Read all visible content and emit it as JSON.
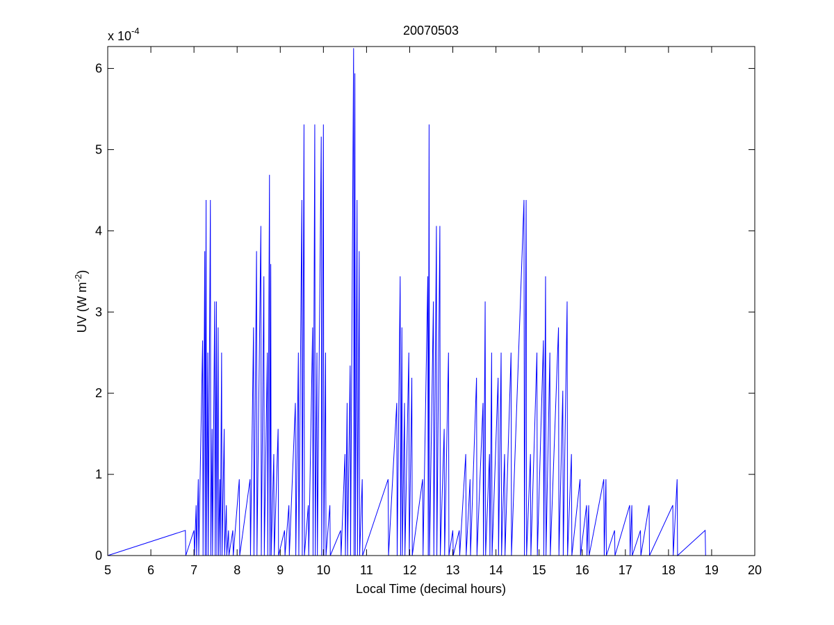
{
  "chart_data": {
    "type": "line",
    "title": "20070503",
    "xlabel": "Local Time (decimal hours)",
    "ylabel": {
      "text": "UV (W m",
      "superscript": "-2",
      "suffix": ")"
    },
    "y_multiplier": {
      "base": "x 10",
      "exponent": "-4"
    },
    "xlim": [
      5,
      20
    ],
    "ylim": [
      0,
      6.27
    ],
    "xticks": [
      5,
      6,
      7,
      8,
      9,
      10,
      11,
      12,
      13,
      14,
      15,
      16,
      17,
      18,
      19,
      20
    ],
    "yticks": [
      0,
      1,
      2,
      3,
      4,
      5,
      6
    ],
    "grid": false,
    "series": [
      {
        "color": "#0000ff",
        "x": [
          5,
          6.8,
          6.81,
          7,
          7.01,
          7.05,
          7.06,
          7.1,
          7.11,
          7.2,
          7.21,
          7.25,
          7.26,
          7.28,
          7.29,
          7.32,
          7.33,
          7.38,
          7.39,
          7.42,
          7.43,
          7.48,
          7.49,
          7.52,
          7.53,
          7.56,
          7.57,
          7.6,
          7.61,
          7.64,
          7.65,
          7.7,
          7.71,
          7.75,
          7.76,
          7.8,
          7.81,
          7.9,
          7.91,
          8.05,
          8.06,
          8.3,
          8.31,
          8.38,
          8.39,
          8.45,
          8.46,
          8.55,
          8.56,
          8.62,
          8.63,
          8.7,
          8.71,
          8.75,
          8.76,
          8.78,
          8.79,
          8.85,
          8.86,
          8.95,
          8.96,
          9.1,
          9.11,
          9.2,
          9.21,
          9.35,
          9.36,
          9.42,
          9.43,
          9.5,
          9.51,
          9.55,
          9.56,
          9.65,
          9.66,
          9.75,
          9.76,
          9.8,
          9.81,
          9.85,
          9.86,
          9.95,
          9.96,
          10,
          10.01,
          10.05,
          10.06,
          10.15,
          10.16,
          10.4,
          10.41,
          10.5,
          10.51,
          10.55,
          10.56,
          10.62,
          10.63,
          10.7,
          10.71,
          10.73,
          10.74,
          10.78,
          10.79,
          10.83,
          10.84,
          10.9,
          10.91,
          11.5,
          11.51,
          11.7,
          11.71,
          11.78,
          11.79,
          11.82,
          11.83,
          11.88,
          11.89,
          11.98,
          11.99,
          12.05,
          12.06,
          12.3,
          12.31,
          12.42,
          12.43,
          12.45,
          12.46,
          12.55,
          12.56,
          12.62,
          12.63,
          12.7,
          12.71,
          12.8,
          12.81,
          12.9,
          12.91,
          13,
          13.01,
          13.15,
          13.16,
          13.3,
          13.31,
          13.4,
          13.41,
          13.55,
          13.56,
          13.7,
          13.71,
          13.75,
          13.76,
          13.85,
          13.86,
          13.9,
          13.91,
          14.05,
          14.06,
          14.12,
          14.13,
          14.2,
          14.21,
          14.35,
          14.36,
          14.65,
          14.66,
          14.7,
          14.71,
          14.8,
          14.81,
          14.95,
          14.96,
          15.1,
          15.11,
          15.15,
          15.16,
          15.25,
          15.26,
          15.45,
          15.46,
          15.55,
          15.56,
          15.65,
          15.66,
          15.75,
          15.76,
          15.95,
          15.96,
          16.1,
          16.11,
          16.15,
          16.16,
          16.5,
          16.51,
          16.55,
          16.56,
          16.75,
          16.76,
          17.1,
          17.11,
          17.15,
          17.16,
          17.35,
          17.36,
          17.55,
          17.56,
          18.1,
          18.11,
          18.2,
          18.21,
          18.85,
          18.86,
          20
        ],
        "values": [
          0,
          0.31,
          0,
          0.31,
          0,
          0.62,
          0,
          0.94,
          0,
          2.65,
          0,
          3.75,
          0,
          4.38,
          0,
          2.5,
          0,
          4.38,
          0,
          1.56,
          0,
          3.13,
          0,
          3.13,
          0,
          2.81,
          0,
          0.94,
          0,
          2.5,
          0,
          1.56,
          0,
          0.62,
          0,
          0.31,
          0,
          0.31,
          0,
          0.94,
          0,
          0.94,
          0,
          2.81,
          0,
          3.75,
          0,
          4.06,
          0,
          3.44,
          0,
          2.5,
          0,
          4.69,
          0,
          3.59,
          0,
          1.25,
          0,
          1.56,
          0,
          0.31,
          0,
          0.62,
          0,
          1.88,
          0,
          2.5,
          0,
          4.38,
          0,
          5.31,
          0,
          0.62,
          0,
          2.81,
          0,
          5.31,
          0,
          2.5,
          0,
          5.16,
          0,
          5.31,
          0,
          2.5,
          0,
          0.62,
          0,
          0.31,
          0,
          1.25,
          0,
          1.88,
          0,
          2.34,
          0,
          6.25,
          0,
          5.94,
          0,
          4.38,
          0,
          3.75,
          0,
          0.94,
          0,
          0.94,
          0,
          1.88,
          0,
          3.44,
          0,
          2.81,
          0,
          1.88,
          0,
          2.5,
          0,
          2.19,
          0,
          0.94,
          0,
          3.44,
          0,
          5.31,
          0,
          3.13,
          0,
          4.06,
          0,
          4.06,
          0,
          1.56,
          0,
          2.5,
          0,
          0.31,
          0,
          0.31,
          0,
          1.25,
          0,
          0.94,
          0,
          2.19,
          0,
          1.88,
          0,
          3.13,
          0,
          1.25,
          0,
          2.5,
          0,
          2.19,
          0,
          2.5,
          0,
          1.25,
          0,
          2.5,
          0,
          4.38,
          0,
          4.38,
          0,
          1.25,
          0,
          2.5,
          0,
          2.65,
          0,
          3.44,
          0,
          2.5,
          0,
          2.81,
          0,
          2.03,
          0,
          3.13,
          0,
          1.25,
          0,
          0.94,
          0,
          0.62,
          0,
          0.62,
          0,
          0.94,
          0,
          0.94,
          0,
          0.31,
          0,
          0.62,
          0,
          0.62,
          0,
          0.31,
          0,
          0.62,
          0,
          0.62,
          0,
          0.94,
          0,
          0.31,
          0,
          0
        ]
      }
    ]
  }
}
